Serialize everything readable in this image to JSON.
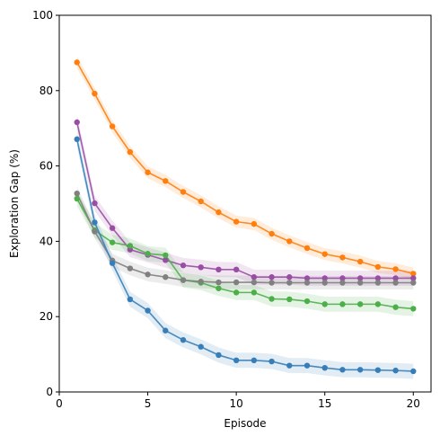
{
  "chart_data": {
    "type": "line",
    "xlabel": "Episode",
    "ylabel": "Exploration Gap (%)",
    "xlim": [
      0,
      21
    ],
    "ylim": [
      0,
      100
    ],
    "xticks": [
      0,
      5,
      10,
      15,
      20
    ],
    "yticks": [
      0,
      20,
      40,
      60,
      80,
      100
    ],
    "grid": false,
    "legend": "none",
    "x": [
      1,
      2,
      3,
      4,
      5,
      6,
      7,
      8,
      9,
      10,
      11,
      12,
      13,
      14,
      15,
      16,
      17,
      18,
      19,
      20
    ],
    "series": [
      {
        "color": "#ff7f0e",
        "values": [
          87.5,
          79.2,
          70.5,
          63.7,
          58.3,
          56.0,
          53.1,
          50.6,
          47.7,
          45.2,
          44.6,
          42.0,
          40.0,
          38.2,
          36.6,
          35.7,
          34.6,
          33.2,
          32.6,
          31.4
        ],
        "band": 1.6
      },
      {
        "color": "#984ea3",
        "values": [
          71.6,
          50.1,
          43.5,
          37.8,
          36.4,
          35.0,
          33.6,
          33.1,
          32.5,
          32.5,
          30.5,
          30.5,
          30.5,
          30.2,
          30.2,
          30.2,
          30.2,
          30.2,
          30.2,
          30.2
        ],
        "band": 2.0
      },
      {
        "color": "#4daf4a",
        "values": [
          51.3,
          42.9,
          39.7,
          38.8,
          36.7,
          36.3,
          29.7,
          29.0,
          27.5,
          26.4,
          26.4,
          24.7,
          24.6,
          24.1,
          23.3,
          23.3,
          23.3,
          23.3,
          22.5,
          22.1
        ],
        "band": 2.0
      },
      {
        "color": "#808080",
        "values": [
          52.7,
          42.6,
          34.9,
          32.8,
          31.2,
          30.5,
          29.7,
          29.3,
          29.1,
          29.1,
          29.1,
          29.0,
          29.0,
          29.0,
          29.0,
          29.0,
          29.0,
          29.0,
          29.0,
          29.0
        ],
        "band": 1.8
      },
      {
        "color": "#377eb8",
        "values": [
          67.1,
          45.0,
          34.2,
          24.6,
          21.6,
          16.3,
          13.8,
          12.0,
          9.8,
          8.4,
          8.4,
          8.1,
          7.0,
          7.0,
          6.4,
          5.9,
          5.9,
          5.8,
          5.7,
          5.5
        ],
        "band": 2.0
      }
    ]
  }
}
